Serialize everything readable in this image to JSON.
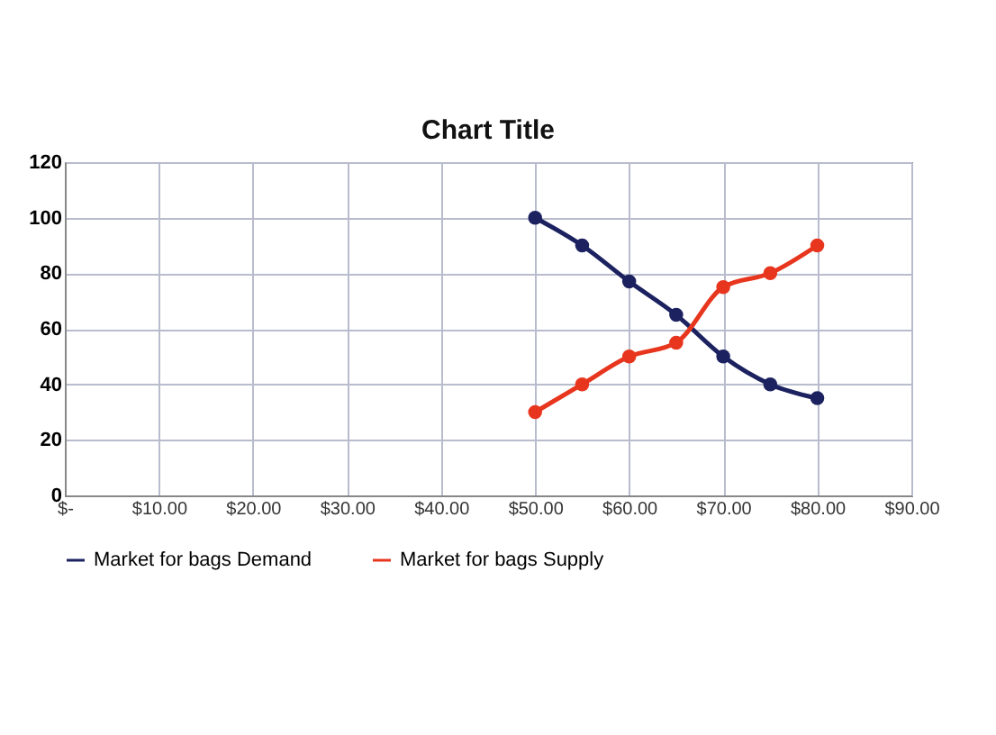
{
  "chart_data": {
    "type": "line",
    "title": "Chart Title",
    "x": [
      50,
      55,
      60,
      65,
      70,
      75,
      80
    ],
    "series": [
      {
        "name": "Market for bags Demand",
        "color": "#1c2260",
        "values": [
          100,
          90,
          77,
          65,
          50,
          40,
          35
        ]
      },
      {
        "name": "Market for bags Supply",
        "color": "#e8361e",
        "values": [
          30,
          40,
          50,
          55,
          75,
          80,
          90
        ]
      }
    ],
    "xlim": [
      0,
      90
    ],
    "xticks": [
      {
        "value": 0,
        "label": "$-"
      },
      {
        "value": 10,
        "label": "$10.00"
      },
      {
        "value": 20,
        "label": "$20.00"
      },
      {
        "value": 30,
        "label": "$30.00"
      },
      {
        "value": 40,
        "label": "$40.00"
      },
      {
        "value": 50,
        "label": "$50.00"
      },
      {
        "value": 60,
        "label": "$60.00"
      },
      {
        "value": 70,
        "label": "$70.00"
      },
      {
        "value": 80,
        "label": "$80.00"
      },
      {
        "value": 90,
        "label": "$90.00"
      }
    ],
    "ylim": [
      0,
      120
    ],
    "yticks": [
      0,
      20,
      40,
      60,
      80,
      100,
      120
    ],
    "grid": true,
    "legend": "bottom",
    "marker": "circle",
    "line_style": "solid"
  }
}
